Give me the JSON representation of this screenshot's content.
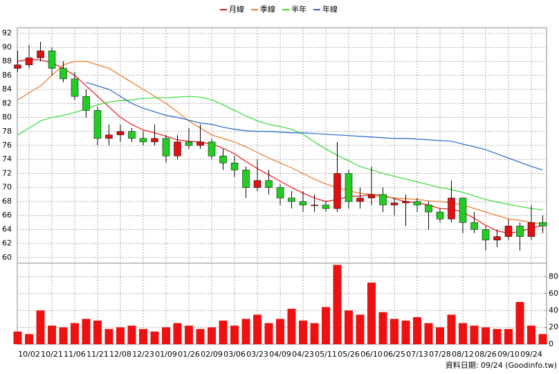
{
  "chart_data": {
    "type": "candlestick",
    "categories": [
      null,
      "10/02",
      null,
      "10/21",
      null,
      "11/06",
      null,
      "11/21",
      null,
      "12/08",
      null,
      "12/23",
      null,
      "01/09",
      null,
      "01/26",
      null,
      "02/09",
      null,
      "03/06",
      null,
      "03/23",
      null,
      "04/09",
      null,
      "04/23",
      null,
      "05/11",
      null,
      "05/26",
      null,
      "06/10",
      null,
      "06/25",
      null,
      "07/13",
      null,
      "07/28",
      null,
      "08/12",
      null,
      "08/26",
      null,
      "09/10",
      null,
      "09/24",
      null
    ],
    "open": [
      87,
      87.5,
      88.5,
      89.5,
      87,
      85.5,
      83,
      81,
      77,
      77.5,
      78,
      77,
      76.5,
      77,
      74.5,
      76.5,
      76,
      76.5,
      74.5,
      73.5,
      72.5,
      70,
      71,
      70,
      68.5,
      68,
      67.5,
      67.5,
      67,
      72,
      68,
      68.5,
      69,
      67.5,
      67.8,
      68,
      67.5,
      66.5,
      65.5,
      68.5,
      65,
      64,
      62.5,
      63,
      64.5,
      63,
      65
    ],
    "high": [
      89.5,
      90.3,
      90.8,
      90,
      88,
      86.5,
      84,
      81.5,
      79,
      79,
      78.5,
      78,
      79,
      77.5,
      77.5,
      78.5,
      79,
      77,
      75.5,
      74.5,
      73,
      74,
      72.5,
      70.5,
      69.5,
      69.5,
      69,
      68,
      76.5,
      72.5,
      70,
      73,
      70,
      68.5,
      69,
      68.5,
      68,
      67,
      71,
      68.5,
      66.5,
      64.5,
      64,
      65.5,
      65,
      67.5,
      66
    ],
    "low": [
      86.5,
      87,
      88,
      86,
      85,
      82.5,
      80,
      76,
      76,
      76.5,
      76.5,
      76,
      76,
      73.5,
      74,
      75.5,
      75.5,
      74,
      72.5,
      71.5,
      68.5,
      69.5,
      69,
      67.5,
      67,
      66.5,
      66.5,
      66.5,
      66.5,
      67,
      67,
      67.5,
      66.5,
      66,
      64.5,
      66.5,
      64,
      65,
      65,
      63.5,
      63.5,
      61,
      61.5,
      62.5,
      61,
      62.5,
      63.5
    ],
    "close": [
      87.5,
      88.5,
      89.5,
      87,
      85.5,
      83,
      81,
      77,
      77.5,
      78,
      77,
      76.5,
      77,
      74.5,
      76.5,
      76,
      76.5,
      74.5,
      73.5,
      72.5,
      70,
      71,
      70,
      68.5,
      68,
      67.5,
      67.5,
      67,
      72,
      68,
      68.5,
      69,
      67.5,
      67.8,
      68,
      67.5,
      66.5,
      65.5,
      68.5,
      65,
      64,
      62.5,
      63,
      64.5,
      63,
      65,
      64.5
    ],
    "up_color": "#dd1111",
    "down_color": "#22cc22",
    "series": [
      {
        "name": "月線",
        "color": "#ee1111",
        "values": [
          88,
          88.3,
          88.2,
          87.8,
          87,
          86,
          84.5,
          83,
          81.5,
          80,
          79,
          78.2,
          77.8,
          77.3,
          76.8,
          76.6,
          76.5,
          76.2,
          75.6,
          74.8,
          73.7,
          72.7,
          71.8,
          70.9,
          70,
          69.2,
          68.5,
          68,
          68.3,
          68.7,
          68.8,
          69,
          68.9,
          68.4,
          68,
          67.8,
          67.5,
          67,
          66.9,
          66.5,
          65.6,
          64.6,
          63.8,
          63.5,
          63.7,
          64.2,
          64.6
        ]
      },
      {
        "name": "季線",
        "color": "#ee7722",
        "values": [
          82.5,
          83.5,
          84.5,
          86,
          87.5,
          88,
          88,
          87.5,
          87,
          86,
          85,
          84,
          83,
          82,
          80.8,
          79.5,
          78.5,
          77.5,
          77,
          76.5,
          75.8,
          75,
          74.2,
          73.5,
          72.8,
          72,
          71.2,
          70.5,
          70,
          69.5,
          69.2,
          69,
          68.7,
          68.5,
          68.4,
          68.3,
          68.1,
          68,
          67.8,
          67.5,
          67,
          66.5,
          66,
          65.5,
          65.3,
          65,
          64.8
        ]
      },
      {
        "name": "半年",
        "color": "#33dd33",
        "values": [
          77.5,
          78.5,
          79.5,
          80,
          80.3,
          80.7,
          81.2,
          81.8,
          82.2,
          82.4,
          82.5,
          82.7,
          82.8,
          82.8,
          82.9,
          83,
          82.9,
          82.5,
          81.8,
          81,
          80.2,
          79.5,
          79,
          78.7,
          78.3,
          77.6,
          76.5,
          75.5,
          74.6,
          73.8,
          73,
          72.5,
          72,
          71.6,
          71.2,
          70.8,
          70.4,
          70,
          69.7,
          69.3,
          68.8,
          68.3,
          67.9,
          67.6,
          67.3,
          67,
          66.8
        ]
      },
      {
        "name": "年線",
        "color": "#2266cc",
        "values": [
          null,
          null,
          null,
          null,
          null,
          null,
          85,
          84.5,
          84,
          83,
          82,
          81.3,
          80.8,
          80.3,
          80,
          79.6,
          79.2,
          79,
          78.6,
          78.3,
          78.1,
          78,
          78,
          77.9,
          77.8,
          77.8,
          77.7,
          77.6,
          77.5,
          77.4,
          77.3,
          77.2,
          77.1,
          77,
          77,
          76.9,
          76.8,
          76.7,
          76.6,
          76.2,
          75.8,
          75.4,
          74.8,
          74.2,
          73.6,
          73,
          72.5
        ]
      }
    ],
    "ylim": [
      59.2,
      92.8
    ],
    "yticks": [
      60,
      62,
      64,
      66,
      68,
      70,
      72,
      74,
      76,
      78,
      80,
      82,
      84,
      86,
      88,
      90,
      92
    ],
    "volume": {
      "color": "#ee1111",
      "values": [
        15,
        12,
        40,
        22,
        20,
        25,
        30,
        28,
        18,
        20,
        22,
        18,
        15,
        20,
        25,
        22,
        18,
        20,
        28,
        22,
        30,
        35,
        25,
        30,
        42,
        28,
        25,
        44,
        94,
        40,
        35,
        73,
        38,
        30,
        28,
        32,
        25,
        20,
        35,
        25,
        22,
        20,
        18,
        18,
        50,
        22,
        12
      ],
      "ylim": [
        0,
        96
      ],
      "yticks": [
        0,
        20,
        40,
        60,
        80
      ]
    },
    "grid": true,
    "legend": "top",
    "footer": "資料日期: 09/24 (Goodinfo.tw)"
  }
}
